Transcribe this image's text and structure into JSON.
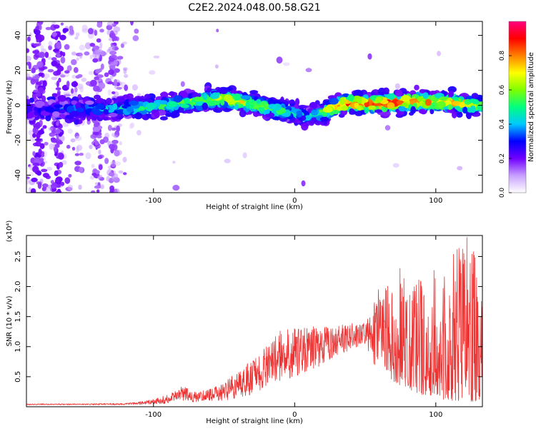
{
  "figure": {
    "title": "C2E2.2024.048.00.58.G21"
  },
  "chart_data": [
    {
      "type": "heatmap",
      "title": "C2E2.2024.048.00.58.G21",
      "xlabel": "Height of straight line (km)",
      "ylabel": "Frequency (Hz)",
      "xlim": [
        -190,
        133
      ],
      "ylim": [
        -50,
        48
      ],
      "x_ticks": [
        -100,
        0,
        100
      ],
      "y_ticks": [
        -40,
        -20,
        0,
        20,
        40
      ],
      "colorbar": {
        "label": "Normalized spectral amplitude",
        "range": [
          0,
          1
        ],
        "ticks": [
          0.0,
          0.2,
          0.4,
          0.6,
          0.8
        ],
        "colors": [
          "#ffffff",
          "#c8a0ff",
          "#7000ff",
          "#0000ff",
          "#00c8ff",
          "#00ff80",
          "#80ff00",
          "#ffff00",
          "#ff8000",
          "#ff0000",
          "#ff0080"
        ]
      },
      "ridge": {
        "x": [
          -190,
          -150,
          -120,
          -100,
          -80,
          -60,
          -50,
          -40,
          -30,
          -20,
          -10,
          0,
          10,
          20,
          25,
          30,
          40,
          60,
          80,
          100,
          120,
          133
        ],
        "freq": [
          -3,
          -2,
          -2,
          -1,
          1,
          3,
          4,
          2,
          1,
          -1,
          -3,
          -5,
          -6,
          -4,
          -2,
          0,
          1,
          1,
          2,
          2,
          1,
          0
        ],
        "amplitude": [
          0.3,
          0.35,
          0.45,
          0.5,
          0.55,
          0.65,
          0.7,
          0.7,
          0.65,
          0.6,
          0.55,
          0.45,
          0.45,
          0.55,
          0.7,
          0.85,
          0.9,
          0.9,
          0.85,
          0.8,
          0.75,
          0.6
        ]
      }
    },
    {
      "type": "line",
      "xlabel": "Height of straight line (km)",
      "ylabel": "SNR (10 * v/v)",
      "scale_label": "(x10⁴)",
      "xlim": [
        -190,
        133
      ],
      "ylim": [
        0,
        2.85
      ],
      "x_ticks": [
        -100,
        0,
        100
      ],
      "y_ticks": [
        0.5,
        1.0,
        1.5,
        2.0,
        2.5
      ],
      "y_tick_labels": [
        "0.5",
        "1.0",
        "1.5",
        "2.0",
        "2.5"
      ],
      "series": [
        {
          "color": "#ee3333",
          "envelope_x": [
            -190,
            -150,
            -120,
            -105,
            -90,
            -80,
            -70,
            -60,
            -50,
            -40,
            -30,
            -20,
            -10,
            0,
            10,
            20,
            30,
            40,
            50,
            55,
            60,
            70,
            80,
            90,
            100,
            110,
            120,
            125,
            133
          ],
          "envelope_low": [
            0.03,
            0.03,
            0.03,
            0.04,
            0.05,
            0.08,
            0.08,
            0.1,
            0.1,
            0.15,
            0.2,
            0.3,
            0.4,
            0.5,
            0.6,
            0.7,
            0.85,
            0.95,
            1.05,
            0.6,
            0.8,
            0.4,
            0.3,
            0.2,
            0.15,
            0.1,
            0.1,
            0.05,
            0.1
          ],
          "envelope_high": [
            0.05,
            0.05,
            0.06,
            0.1,
            0.2,
            0.35,
            0.25,
            0.3,
            0.4,
            0.6,
            0.8,
            1.0,
            1.3,
            1.3,
            1.35,
            1.35,
            1.35,
            1.4,
            1.45,
            1.7,
            2.05,
            2.2,
            2.6,
            2.3,
            2.4,
            2.5,
            2.85,
            2.8,
            1.9
          ]
        }
      ]
    }
  ]
}
